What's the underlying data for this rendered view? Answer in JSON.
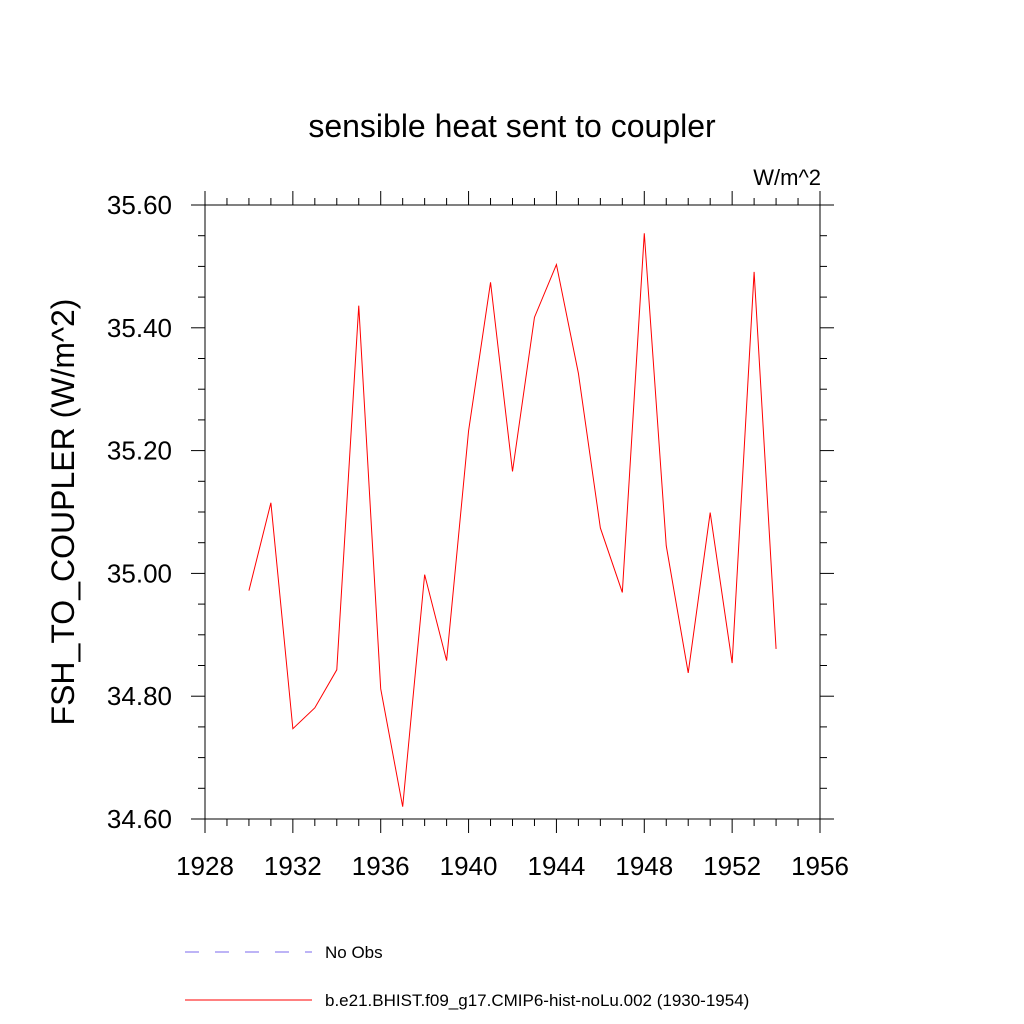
{
  "chart_data": {
    "type": "line",
    "title": "sensible heat sent to coupler",
    "units": "W/m^2",
    "ylabel": "FSH_TO_COUPLER  (W/m^2)",
    "xlabel": "",
    "xlim": [
      1928,
      1956
    ],
    "ylim": [
      34.6,
      35.6
    ],
    "x_ticks": [
      "1928",
      "1932",
      "1936",
      "1940",
      "1944",
      "1948",
      "1952",
      "1956"
    ],
    "y_ticks": [
      "34.60",
      "34.80",
      "35.00",
      "35.20",
      "35.40",
      "35.60"
    ],
    "x": [
      1930,
      1931,
      1932,
      1933,
      1934,
      1935,
      1936,
      1937,
      1938,
      1939,
      1940,
      1941,
      1942,
      1943,
      1944,
      1945,
      1946,
      1947,
      1948,
      1949,
      1950,
      1951,
      1952,
      1953,
      1954
    ],
    "series": [
      {
        "name": "b.e21.BHIST.f09_g17.CMIP6-hist-noLu.002 (1930-1954)",
        "color": "#ff0000",
        "values": [
          34.972,
          35.115,
          34.747,
          34.781,
          34.843,
          35.436,
          34.812,
          34.62,
          34.998,
          34.858,
          35.232,
          35.474,
          35.166,
          35.417,
          35.503,
          35.326,
          35.074,
          34.969,
          35.554,
          35.045,
          34.838,
          35.099,
          34.854,
          35.491,
          34.877
        ]
      }
    ],
    "legend": [
      {
        "label": "No Obs",
        "color": "#7b68ee",
        "style": "dashed"
      },
      {
        "label": "b.e21.BHIST.f09_g17.CMIP6-hist-noLu.002 (1930-1954)",
        "color": "#ff0000",
        "style": "solid"
      }
    ],
    "grid": false,
    "legend_position": "bottom"
  }
}
